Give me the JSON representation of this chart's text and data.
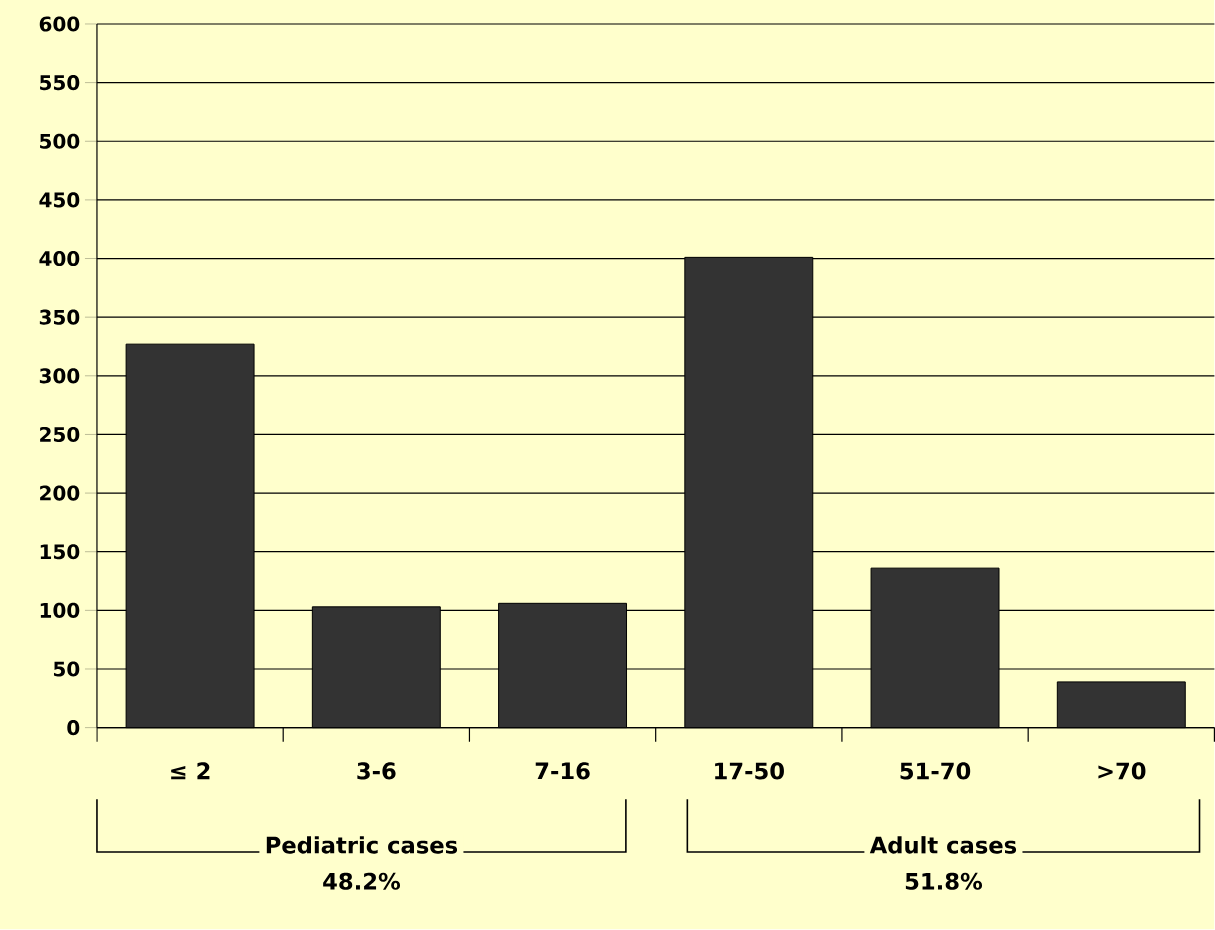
{
  "chart_data": {
    "type": "bar",
    "categories": [
      "≤ 2",
      "3-6",
      "7-16",
      "17-50",
      "51-70",
      ">70"
    ],
    "values": [
      327,
      103,
      106,
      401,
      136,
      39
    ],
    "color": "#333333",
    "ylim": [
      0,
      600
    ],
    "yticks": [
      0,
      50,
      100,
      150,
      200,
      250,
      300,
      350,
      400,
      450,
      500,
      550,
      600
    ],
    "grid": "y",
    "annotations": [
      "Pediatric cases",
      "48.2%",
      "Adult cases",
      "51.8%"
    ]
  }
}
